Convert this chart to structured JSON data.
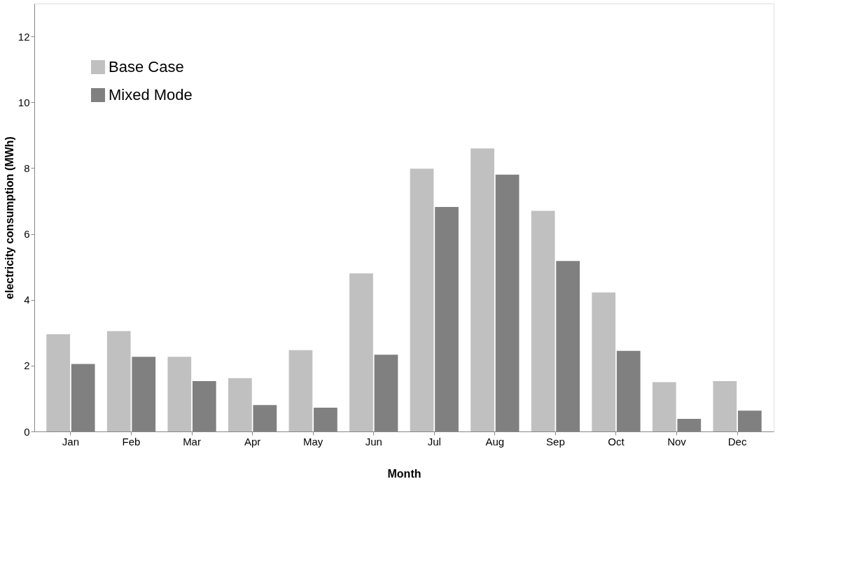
{
  "chart_data": {
    "type": "bar",
    "xlabel": "Month",
    "ylabel": "electricity consumption (MWh)",
    "categories": [
      "Jan",
      "Feb",
      "Mar",
      "Apr",
      "May",
      "Jun",
      "Jul",
      "Aug",
      "Sep",
      "Oct",
      "Nov",
      "Dec"
    ],
    "series": [
      {
        "name": "Base Case",
        "color": "#c0c0c0",
        "values": [
          2.95,
          3.05,
          2.27,
          1.62,
          2.47,
          4.8,
          7.98,
          8.6,
          6.7,
          4.22,
          1.5,
          1.53
        ]
      },
      {
        "name": "Mixed Mode",
        "color": "#808080",
        "values": [
          2.05,
          2.27,
          1.53,
          0.8,
          0.72,
          2.33,
          6.82,
          7.8,
          5.18,
          2.45,
          0.38,
          0.63
        ]
      }
    ],
    "ylim": [
      0,
      13
    ],
    "yticks": [
      0,
      2,
      4,
      6,
      8,
      10,
      12
    ],
    "grid": false,
    "legend": "top left"
  }
}
